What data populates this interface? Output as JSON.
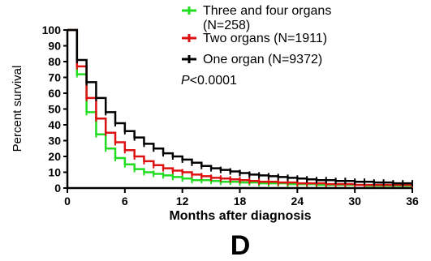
{
  "chart_data": {
    "type": "line",
    "step": true,
    "xlabel": "Months after diagnosis",
    "ylabel": "Percent survival",
    "xlim": [
      0,
      36
    ],
    "ylim": [
      0,
      100
    ],
    "xticks": [
      "0",
      "6",
      "12",
      "18",
      "24",
      "30",
      "36"
    ],
    "yticks": [
      "0",
      "10",
      "20",
      "30",
      "40",
      "50",
      "60",
      "70",
      "80",
      "90",
      "100"
    ],
    "grid": false,
    "legend_placement": "top-right",
    "annotation": {
      "prefix": "P",
      "rest": "<0.0001"
    },
    "panel_label": "D",
    "series": [
      {
        "name": "Three and four organs",
        "name_line2": "(N=258)",
        "color": "#22dd22",
        "x": [
          0,
          1,
          2,
          3,
          4,
          5,
          6,
          7,
          8,
          9,
          10,
          11,
          12,
          13,
          14,
          15,
          16,
          17,
          18,
          19,
          20,
          21,
          22,
          23,
          24,
          25,
          26,
          27,
          28,
          29,
          30,
          31,
          32,
          33,
          34,
          35,
          36
        ],
        "y": [
          100,
          72,
          48,
          34,
          25,
          19,
          15,
          12,
          10,
          9,
          8,
          7,
          6,
          5,
          5,
          4.5,
          4,
          4,
          3.5,
          3.5,
          3,
          3,
          3,
          2.5,
          2.5,
          2.5,
          2,
          2,
          2,
          2,
          2,
          1.5,
          1.5,
          1.5,
          1.5,
          1.5,
          1.5
        ]
      },
      {
        "name": "Two organs (N=1911)",
        "color": "#dd1111",
        "x": [
          0,
          1,
          2,
          3,
          4,
          5,
          6,
          7,
          8,
          9,
          10,
          11,
          12,
          13,
          14,
          15,
          16,
          17,
          18,
          19,
          20,
          21,
          22,
          23,
          24,
          25,
          26,
          27,
          28,
          29,
          30,
          31,
          32,
          33,
          34,
          35,
          36
        ],
        "y": [
          100,
          77,
          57,
          44,
          35,
          29,
          24,
          20,
          17,
          14.5,
          12.5,
          11,
          10,
          8.5,
          7.5,
          6.5,
          6,
          5.5,
          5,
          4.5,
          4,
          4,
          3.5,
          3.5,
          3,
          3,
          3,
          2.5,
          2.5,
          2.5,
          2,
          2,
          2,
          2,
          2,
          2,
          2
        ]
      },
      {
        "name": "One organ  (N=9372)",
        "color": "#000000",
        "x": [
          0,
          1,
          2,
          3,
          4,
          5,
          6,
          7,
          8,
          9,
          10,
          11,
          12,
          13,
          14,
          15,
          16,
          17,
          18,
          19,
          20,
          21,
          22,
          23,
          24,
          25,
          26,
          27,
          28,
          29,
          30,
          31,
          32,
          33,
          34,
          35,
          36
        ],
        "y": [
          100,
          81,
          67,
          57,
          48,
          41,
          36,
          32,
          28,
          25,
          22,
          20,
          18,
          16,
          14,
          12.5,
          11.5,
          10.5,
          9.5,
          8.5,
          8,
          7.5,
          7,
          6.5,
          6,
          5.5,
          5,
          5,
          4.5,
          4.5,
          4,
          4,
          3.5,
          3.5,
          3,
          3,
          3
        ]
      }
    ]
  }
}
